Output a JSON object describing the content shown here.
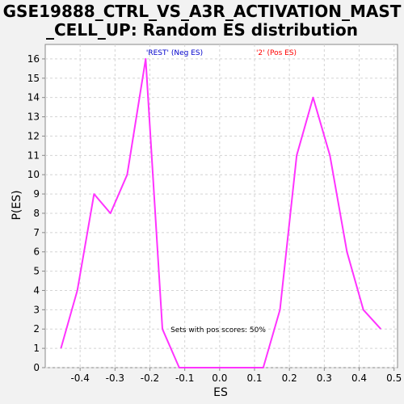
{
  "chart_data": {
    "type": "line",
    "title_line1": "GSE19888_CTRL_VS_A3R_ACTIVATION_MAST",
    "title_line2": "_CELL_UP: Random ES distribution",
    "xlabel": "ES",
    "ylabel": "P(ES)",
    "xlim": [
      -0.5,
      0.51
    ],
    "ylim": [
      0,
      16.75
    ],
    "xticks": [
      -0.4,
      -0.3,
      -0.2,
      -0.1,
      0.0,
      0.1,
      0.2,
      0.3,
      0.4,
      0.5
    ],
    "xtick_labels": [
      "-0.4",
      "-0.3",
      "-0.2",
      "-0.1",
      "0.0",
      "0.1",
      "0.2",
      "0.3",
      "0.4",
      "0.5"
    ],
    "yticks": [
      0,
      1,
      2,
      3,
      4,
      5,
      6,
      7,
      8,
      9,
      10,
      11,
      12,
      13,
      14,
      15,
      16
    ],
    "grid": true,
    "series": [
      {
        "color": "#ff33ff",
        "x": [
          -0.455,
          -0.408,
          -0.36,
          -0.313,
          -0.265,
          -0.212,
          -0.164,
          -0.116,
          -0.068,
          0.03,
          0.125,
          0.173,
          0.221,
          0.268,
          0.316,
          0.365,
          0.412,
          0.462
        ],
        "y": [
          1,
          4,
          9,
          8,
          10,
          16,
          2,
          0,
          0,
          0,
          0,
          3,
          11,
          14,
          11,
          6,
          3,
          2
        ]
      }
    ],
    "annotations": {
      "neg_label": "'REST' (Neg ES)",
      "neg_color": "#0000cc",
      "pos_label": "'2' (Pos ES)",
      "pos_color": "#ff0000",
      "pos_scores_text": "Sets with pos scores: 50%"
    }
  }
}
